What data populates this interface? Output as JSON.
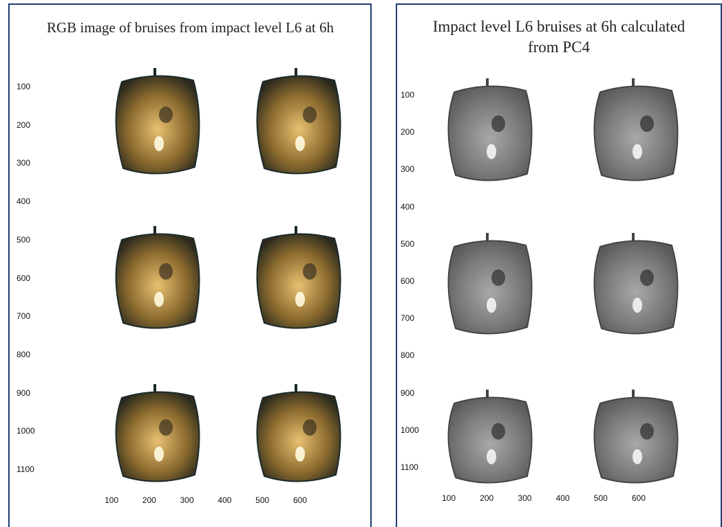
{
  "panels": [
    {
      "title": "RGB image of bruises from impact level L6 at 6h",
      "yticks": [
        "100",
        "200",
        "300",
        "400",
        "500",
        "600",
        "700",
        "800",
        "900",
        "1000",
        "1100"
      ],
      "xticks": [
        "100",
        "200",
        "300",
        "400",
        "500",
        "600"
      ]
    },
    {
      "title": "Impact level L6 bruises at 6h calculated from PC4",
      "yticks": [
        "100",
        "200",
        "300",
        "400",
        "500",
        "600",
        "700",
        "800",
        "900",
        "1000",
        "1100"
      ],
      "xticks": [
        "100",
        "200",
        "300",
        "400",
        "500",
        "600"
      ]
    }
  ]
}
